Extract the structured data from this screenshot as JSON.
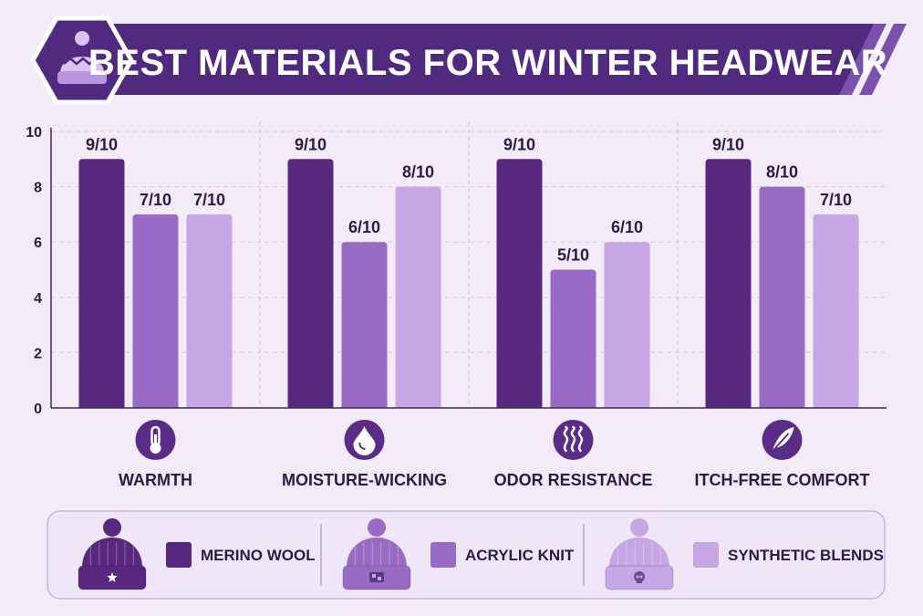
{
  "colors": {
    "background": "#f2ecf8",
    "banner": "#4f2a7e",
    "series": [
      "#58287f",
      "#9a6bc4",
      "#c7a6e6"
    ],
    "icon_circle": "#5a2c88"
  },
  "chart_data": {
    "type": "bar",
    "title": "BEST MATERIALS FOR WINTER HEADWEAR",
    "categories": [
      "WARMTH",
      "MOISTURE-WICKING",
      "ODOR RESISTANCE",
      "ITCH-FREE COMFORT"
    ],
    "category_icons": [
      "thermometer-icon",
      "droplet-icon",
      "heat-waves-icon",
      "feather-icon"
    ],
    "series": [
      {
        "name": "MERINO WOOL",
        "values": [
          9,
          9,
          9,
          9
        ],
        "data_labels": [
          "9/10",
          "9/10",
          "9/10",
          "9/10"
        ],
        "legend_icon": "beanie-star-icon"
      },
      {
        "name": "ACRYLIC KNIT",
        "values": [
          7,
          6,
          5,
          8
        ],
        "data_labels": [
          "7/10",
          "6/10",
          "5/10",
          "8/10"
        ],
        "legend_icon": "beanie-patch-icon"
      },
      {
        "name": "SYNTHETIC BLENDS",
        "values": [
          7,
          8,
          6,
          7
        ],
        "data_labels": [
          "7/10",
          "8/10",
          "6/10",
          "7/10"
        ],
        "legend_icon": "beanie-skull-icon"
      }
    ],
    "ylim": [
      0,
      10
    ],
    "yticks": [
      "0",
      "2",
      "4",
      "6",
      "8",
      "10"
    ],
    "grid": true,
    "legend_position": "bottom"
  }
}
